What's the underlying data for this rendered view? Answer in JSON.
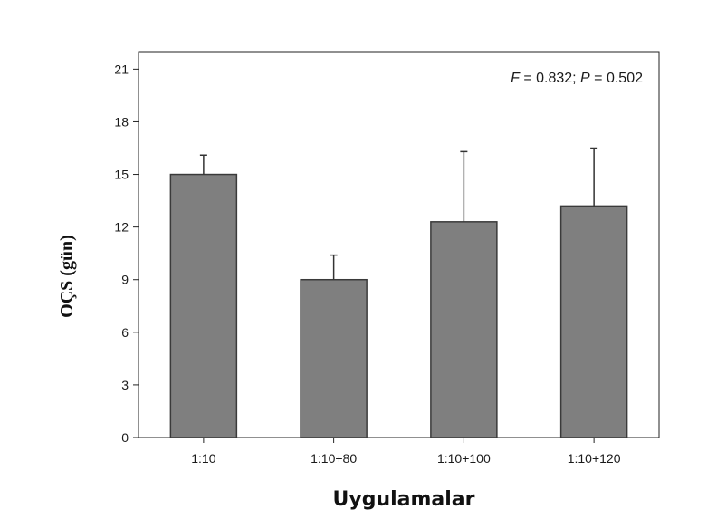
{
  "chart_data": {
    "type": "bar",
    "categories": [
      "1:10",
      "1:10+80",
      "1:10+100",
      "1:10+120"
    ],
    "values": [
      15.0,
      9.0,
      12.3,
      13.2
    ],
    "errors": [
      1.1,
      1.4,
      4.0,
      3.3
    ],
    "xlabel": "Uygulamalar",
    "ylabel": "OÇS (gün)",
    "ylim": [
      0,
      22
    ],
    "yticks": [
      0,
      3,
      6,
      9,
      12,
      15,
      18,
      21
    ],
    "annotation": {
      "f_symbol": "F",
      "f_value": " = 0.832; ",
      "p_symbol": "P",
      "p_value": " = 0.502"
    },
    "bar_color": "#7f7f7f",
    "grid": false,
    "legend": "none"
  }
}
